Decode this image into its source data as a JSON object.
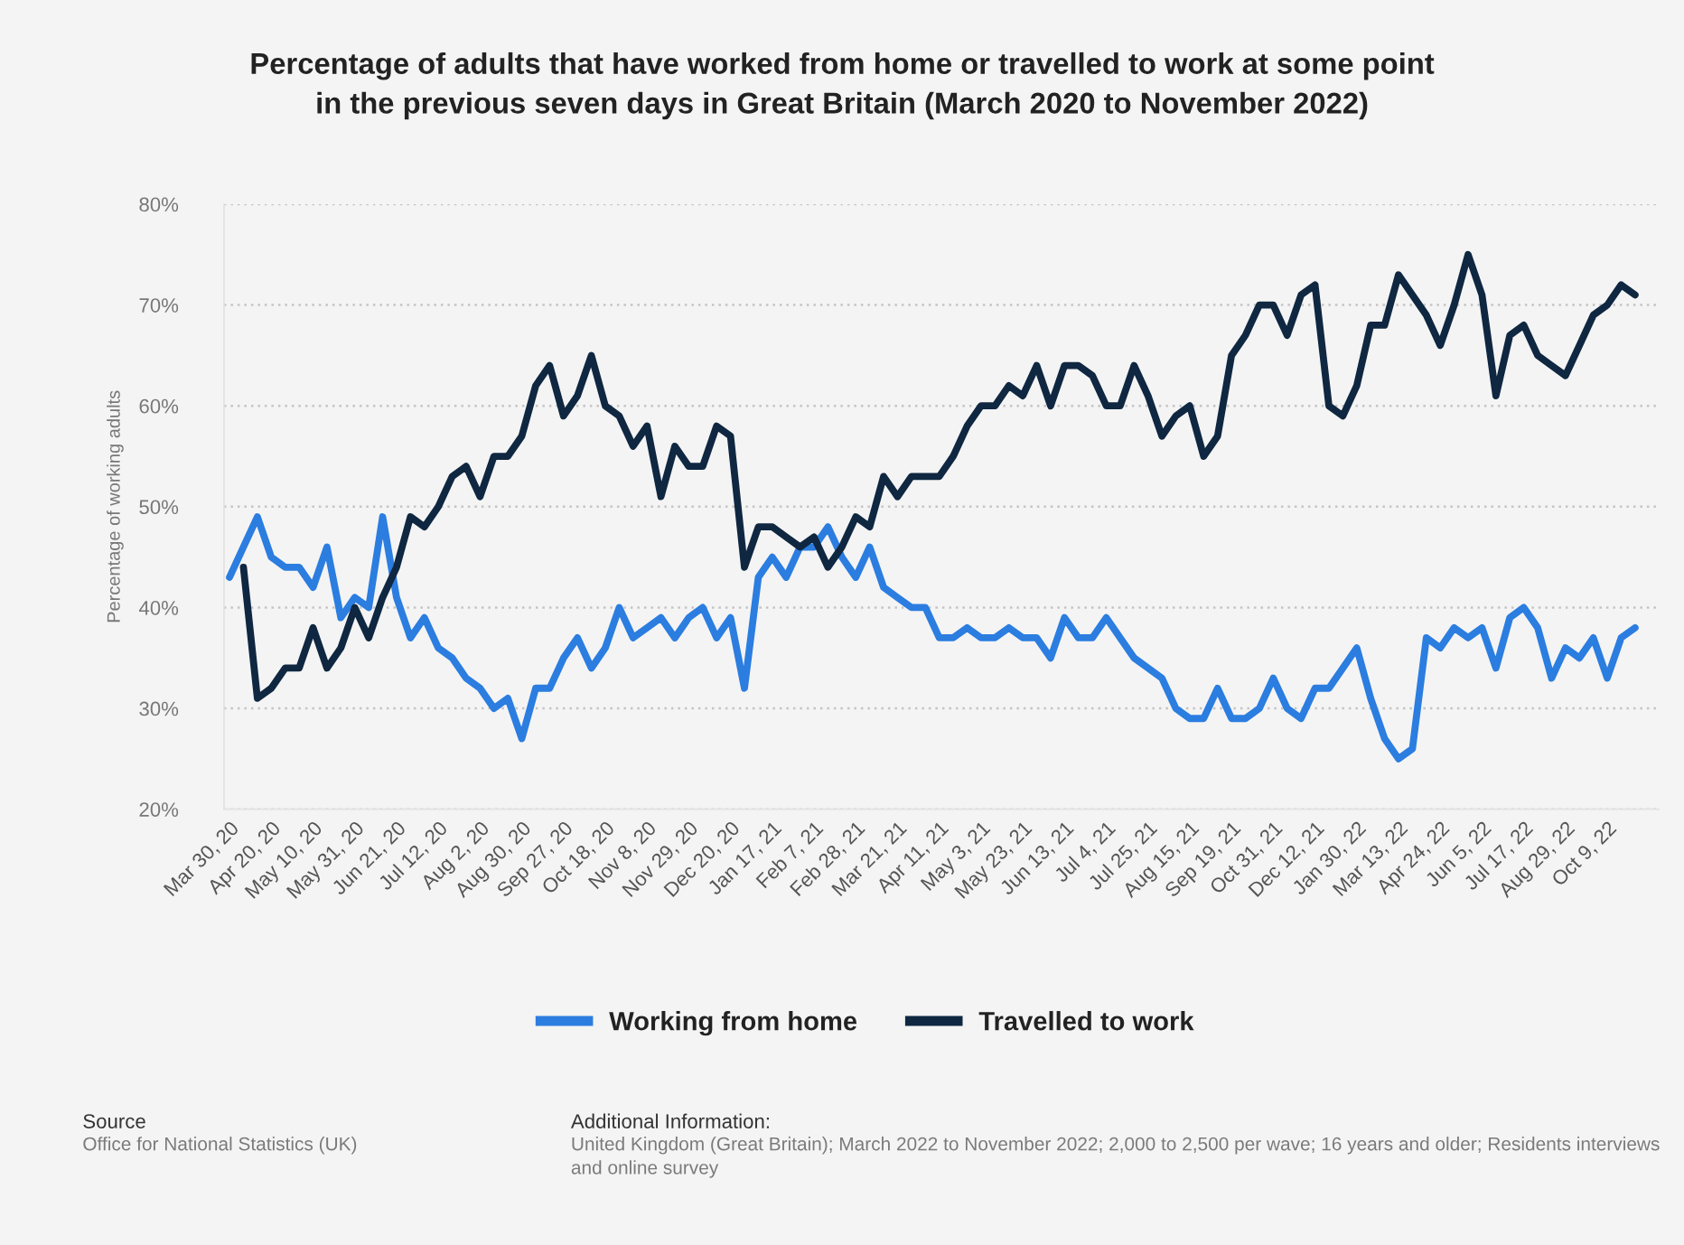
{
  "chart_data": {
    "type": "line",
    "title": "Percentage of adults that have worked from home or travelled to work at some point\nin the previous seven days in Great Britain (March 2020 to November 2022)",
    "ylabel": "Percentage of working adults",
    "categories": [
      "Mar 30, 20",
      null,
      null,
      "Apr 20, 20",
      null,
      null,
      "May 10, 20",
      null,
      null,
      "May 31, 20",
      null,
      null,
      "Jun 21, 20",
      null,
      null,
      "Jul 12, 20",
      null,
      null,
      "Aug 2, 20",
      null,
      null,
      "Aug 30, 20",
      null,
      null,
      "Sep 27, 20",
      null,
      null,
      "Oct 18, 20",
      null,
      null,
      "Nov 8, 20",
      null,
      null,
      "Nov 29, 20",
      null,
      null,
      "Dec 20, 20",
      null,
      null,
      "Jan 17, 21",
      null,
      null,
      "Feb 7, 21",
      null,
      null,
      "Feb 28, 21",
      null,
      null,
      "Mar 21, 21",
      null,
      null,
      "Apr 11, 21",
      null,
      null,
      "May 3, 21",
      null,
      null,
      "May 23, 21",
      null,
      null,
      "Jun 13, 21",
      null,
      null,
      "Jul 4, 21",
      null,
      null,
      "Jul 25, 21",
      null,
      null,
      "Aug 15, 21",
      null,
      null,
      "Sep 19, 21",
      null,
      null,
      "Oct 31, 21",
      null,
      null,
      "Dec 12, 21",
      null,
      null,
      "Jan 30, 22",
      null,
      null,
      "Mar 13, 22",
      null,
      null,
      "Apr 24, 22",
      null,
      null,
      "Jun 5, 22",
      null,
      null,
      "Jul 17, 22",
      null,
      null,
      "Aug 29, 22",
      null,
      null,
      "Oct 9, 22",
      null,
      null
    ],
    "series": [
      {
        "name": "Working from home",
        "color": "#2b7de0",
        "values": [
          43,
          46,
          49,
          45,
          44,
          44,
          42,
          46,
          39,
          41,
          40,
          49,
          41,
          37,
          39,
          36,
          35,
          33,
          32,
          30,
          31,
          27,
          32,
          32,
          35,
          37,
          34,
          36,
          40,
          37,
          38,
          39,
          37,
          39,
          40,
          37,
          39,
          32,
          43,
          45,
          43,
          46,
          46,
          48,
          45,
          43,
          46,
          42,
          41,
          40,
          40,
          37,
          37,
          38,
          37,
          37,
          38,
          37,
          37,
          35,
          39,
          37,
          37,
          39,
          37,
          35,
          34,
          33,
          30,
          29,
          29,
          32,
          29,
          29,
          30,
          33,
          30,
          29,
          32,
          32,
          34,
          36,
          31,
          27,
          25,
          26,
          37,
          36,
          38,
          37,
          38,
          34,
          39,
          40,
          38,
          33,
          36,
          35,
          37,
          33,
          37,
          38
        ]
      },
      {
        "name": "Travelled to work",
        "color": "#0f2741",
        "values": [
          null,
          44,
          31,
          32,
          34,
          34,
          38,
          34,
          36,
          40,
          37,
          41,
          44,
          49,
          48,
          50,
          53,
          54,
          51,
          55,
          55,
          57,
          62,
          64,
          59,
          61,
          65,
          60,
          59,
          56,
          58,
          51,
          56,
          54,
          54,
          58,
          57,
          44,
          48,
          48,
          47,
          46,
          47,
          44,
          46,
          49,
          48,
          53,
          51,
          53,
          53,
          53,
          55,
          58,
          60,
          60,
          62,
          61,
          64,
          60,
          64,
          64,
          63,
          60,
          60,
          64,
          61,
          57,
          59,
          60,
          55,
          57,
          65,
          67,
          70,
          70,
          67,
          71,
          72,
          60,
          59,
          62,
          68,
          68,
          73,
          71,
          69,
          66,
          70,
          75,
          71,
          61,
          67,
          68,
          65,
          64,
          63,
          66,
          69,
          70,
          72,
          71
        ]
      }
    ],
    "ylim": [
      20,
      80
    ],
    "yticks": [
      {
        "value": 20,
        "label": "20%"
      },
      {
        "value": 30,
        "label": "30%"
      },
      {
        "value": 40,
        "label": "40%"
      },
      {
        "value": 50,
        "label": "50%"
      },
      {
        "value": 60,
        "label": "60%"
      },
      {
        "value": 70,
        "label": "70%"
      },
      {
        "value": 80,
        "label": "80%"
      }
    ],
    "grid": "y",
    "legend": "bottom",
    "line_style": "solid",
    "marker": "none",
    "annotations": [
      "Source",
      "Office for National Statistics (UK)",
      "Additional Information:",
      "United Kingdom (Great Britain); March 2022 to November 2022; 2,000 to 2,500 per wave; 16 years and older; Residents interviews and online survey"
    ]
  }
}
